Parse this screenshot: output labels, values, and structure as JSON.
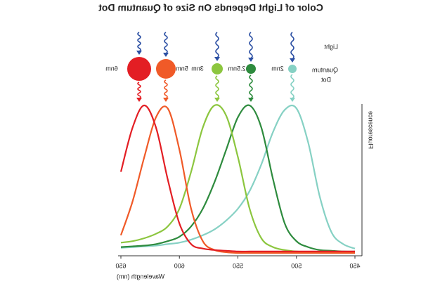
{
  "chart_data": {
    "type": "line",
    "title": "Color of Light Depends On Size of Quantum Dot",
    "x_label": "Wavelength (nm)",
    "y_label": "Fluorescence",
    "light_label": "Light",
    "dot_legend": [
      "Quantum",
      "Dot"
    ],
    "x": [
      450,
      460,
      470,
      480,
      490,
      500,
      510,
      520,
      530,
      540,
      550,
      560,
      570,
      580,
      590,
      600,
      610,
      620,
      630,
      640,
      650
    ],
    "xlim": [
      444,
      650
    ],
    "xticks": [
      450,
      500,
      550,
      600,
      650
    ],
    "ylim": [
      0,
      1
    ],
    "series": [
      {
        "name": "2nm",
        "color": "#86d1c4",
        "values": [
          0.03,
          0.06,
          0.14,
          0.38,
          0.75,
          0.98,
          0.97,
          0.82,
          0.6,
          0.42,
          0.3,
          0.22,
          0.16,
          0.12,
          0.09,
          0.07,
          0.06,
          0.05,
          0.045,
          0.04,
          0.035
        ]
      },
      {
        "name": "2.5nm",
        "color": "#2e8b3e",
        "values": [
          0.01,
          0.01,
          0.015,
          0.02,
          0.04,
          0.08,
          0.2,
          0.5,
          0.85,
          1.0,
          0.92,
          0.7,
          0.48,
          0.3,
          0.18,
          0.11,
          0.08,
          0.06,
          0.05,
          0.045,
          0.04
        ]
      },
      {
        "name": "3nm",
        "color": "#8cc63f",
        "values": [
          0.0,
          0.0,
          0.0,
          0.0,
          0.005,
          0.01,
          0.02,
          0.04,
          0.1,
          0.3,
          0.65,
          0.93,
          1.0,
          0.85,
          0.55,
          0.3,
          0.18,
          0.13,
          0.1,
          0.08,
          0.07
        ]
      },
      {
        "name": "5nm",
        "color": "#f05a28",
        "values": [
          0.0,
          0.0,
          0.0,
          0.0,
          0.0,
          0.0,
          0.0,
          0.0,
          0.0,
          0.0,
          0.0,
          0.005,
          0.02,
          0.08,
          0.3,
          0.7,
          0.98,
          0.92,
          0.65,
          0.35,
          0.12
        ]
      },
      {
        "name": "6nm",
        "color": "#e31e24",
        "values": [
          0.01,
          0.01,
          0.01,
          0.01,
          0.01,
          0.01,
          0.01,
          0.01,
          0.01,
          0.01,
          0.01,
          0.015,
          0.02,
          0.03,
          0.06,
          0.2,
          0.5,
          0.85,
          1.0,
          0.85,
          0.55
        ]
      }
    ]
  }
}
